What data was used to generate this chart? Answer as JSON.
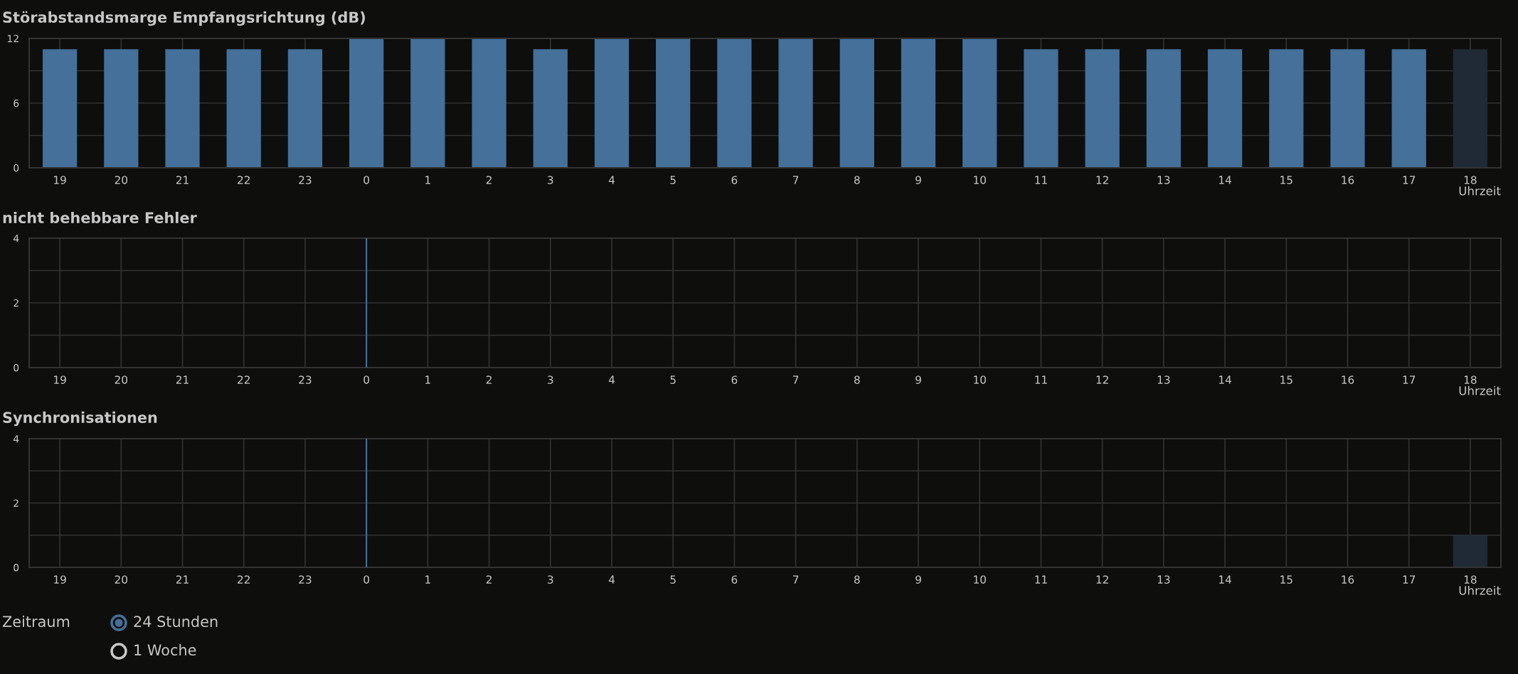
{
  "chart_data": [
    {
      "type": "bar",
      "title": "Störabstandsmarge Empfangsrichtung (dB)",
      "xlabel": "Uhrzeit",
      "categories": [
        "19",
        "20",
        "21",
        "22",
        "23",
        "0",
        "1",
        "2",
        "3",
        "4",
        "5",
        "6",
        "7",
        "8",
        "9",
        "10",
        "11",
        "12",
        "13",
        "14",
        "15",
        "16",
        "17",
        "18"
      ],
      "values": [
        11,
        11,
        11,
        11,
        11,
        12,
        12,
        12,
        11,
        12,
        12,
        12,
        12,
        12,
        12,
        12,
        11,
        11,
        11,
        11,
        11,
        11,
        11,
        11
      ],
      "colors": [
        "#44709a",
        "#44709a",
        "#44709a",
        "#44709a",
        "#44709a",
        "#44709a",
        "#44709a",
        "#44709a",
        "#44709a",
        "#44709a",
        "#44709a",
        "#44709a",
        "#44709a",
        "#44709a",
        "#44709a",
        "#44709a",
        "#44709a",
        "#44709a",
        "#44709a",
        "#44709a",
        "#44709a",
        "#44709a",
        "#44709a",
        "#1f2a36"
      ],
      "ylim": [
        0,
        12
      ],
      "yticks": [
        0,
        {
          "value": 3,
          "label": null
        },
        6,
        {
          "value": 9,
          "label": null
        },
        12
      ],
      "grid": true
    },
    {
      "type": "bar",
      "title": "nicht behebbare Fehler",
      "xlabel": "Uhrzeit",
      "categories": [
        "19",
        "20",
        "21",
        "22",
        "23",
        "0",
        "1",
        "2",
        "3",
        "4",
        "5",
        "6",
        "7",
        "8",
        "9",
        "10",
        "11",
        "12",
        "13",
        "14",
        "15",
        "16",
        "17",
        "18"
      ],
      "values": [
        0,
        0,
        0,
        0,
        0,
        0,
        0,
        0,
        0,
        0,
        0,
        0,
        0,
        0,
        0,
        0,
        0,
        0,
        0,
        0,
        0,
        0,
        0,
        0
      ],
      "ylim": [
        0,
        4
      ],
      "yticks": [
        0,
        {
          "value": 1,
          "label": null
        },
        2,
        {
          "value": 3,
          "label": null
        },
        4
      ],
      "grid": true,
      "ref_lines": [
        {
          "axis": "x",
          "value": "0",
          "color": "#44709a"
        }
      ]
    },
    {
      "type": "bar",
      "title": "Synchronisationen",
      "xlabel": "Uhrzeit",
      "categories": [
        "19",
        "20",
        "21",
        "22",
        "23",
        "0",
        "1",
        "2",
        "3",
        "4",
        "5",
        "6",
        "7",
        "8",
        "9",
        "10",
        "11",
        "12",
        "13",
        "14",
        "15",
        "16",
        "17",
        "18"
      ],
      "values": [
        0,
        0,
        0,
        0,
        0,
        0,
        0,
        0,
        0,
        0,
        0,
        0,
        0,
        0,
        0,
        0,
        0,
        0,
        0,
        0,
        0,
        0,
        0,
        1
      ],
      "colors": [
        "#44709a",
        "#44709a",
        "#44709a",
        "#44709a",
        "#44709a",
        "#44709a",
        "#44709a",
        "#44709a",
        "#44709a",
        "#44709a",
        "#44709a",
        "#44709a",
        "#44709a",
        "#44709a",
        "#44709a",
        "#44709a",
        "#44709a",
        "#44709a",
        "#44709a",
        "#44709a",
        "#44709a",
        "#44709a",
        "#44709a",
        "#1f2a36"
      ],
      "ylim": [
        0,
        4
      ],
      "yticks": [
        0,
        {
          "value": 1,
          "label": null
        },
        2,
        {
          "value": 3,
          "label": null
        },
        4
      ],
      "grid": true,
      "ref_lines": [
        {
          "axis": "x",
          "value": "0",
          "color": "#44709a"
        }
      ]
    },
    {
      "type": "other",
      "annotations": [
        "Zeitraum",
        "24 Stunden",
        "1 Woche"
      ]
    }
  ]
}
